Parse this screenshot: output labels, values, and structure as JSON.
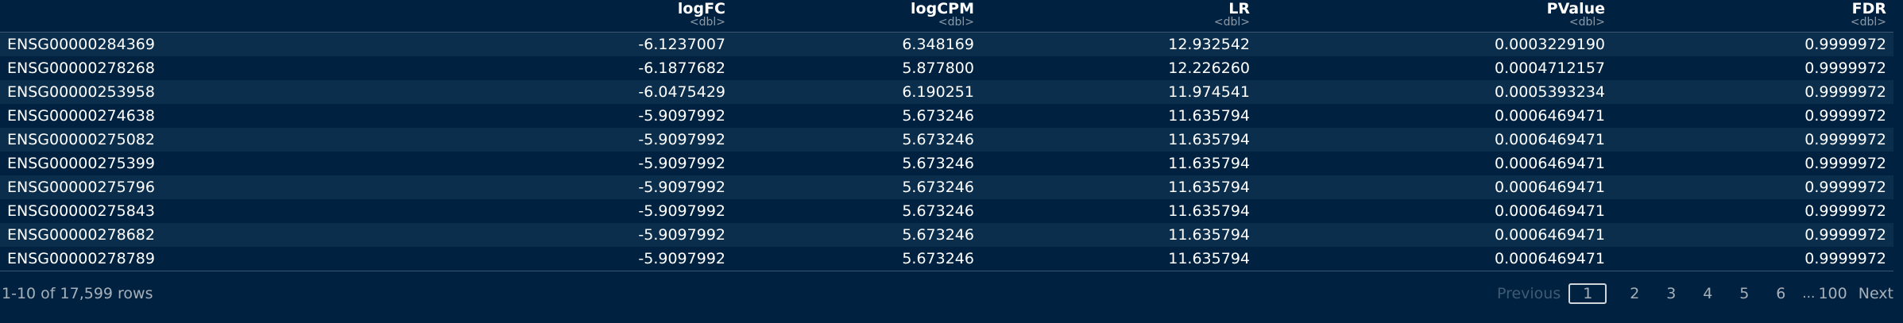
{
  "table": {
    "columns": [
      {
        "name": "",
        "type": ""
      },
      {
        "name": "logFC",
        "type": "<dbl>"
      },
      {
        "name": "logCPM",
        "type": "<dbl>"
      },
      {
        "name": "LR",
        "type": "<dbl>"
      },
      {
        "name": "PValue",
        "type": "<dbl>"
      },
      {
        "name": "FDR",
        "type": "<dbl>"
      }
    ],
    "rows": [
      [
        "ENSG00000284369",
        "-6.1237007",
        "6.348169",
        "12.932542",
        "0.0003229190",
        "0.9999972"
      ],
      [
        "ENSG00000278268",
        "-6.1877682",
        "5.877800",
        "12.226260",
        "0.0004712157",
        "0.9999972"
      ],
      [
        "ENSG00000253958",
        "-6.0475429",
        "6.190251",
        "11.974541",
        "0.0005393234",
        "0.9999972"
      ],
      [
        "ENSG00000274638",
        "-5.9097992",
        "5.673246",
        "11.635794",
        "0.0006469471",
        "0.9999972"
      ],
      [
        "ENSG00000275082",
        "-5.9097992",
        "5.673246",
        "11.635794",
        "0.0006469471",
        "0.9999972"
      ],
      [
        "ENSG00000275399",
        "-5.9097992",
        "5.673246",
        "11.635794",
        "0.0006469471",
        "0.9999972"
      ],
      [
        "ENSG00000275796",
        "-5.9097992",
        "5.673246",
        "11.635794",
        "0.0006469471",
        "0.9999972"
      ],
      [
        "ENSG00000275843",
        "-5.9097992",
        "5.673246",
        "11.635794",
        "0.0006469471",
        "0.9999972"
      ],
      [
        "ENSG00000278682",
        "-5.9097992",
        "5.673246",
        "11.635794",
        "0.0006469471",
        "0.9999972"
      ],
      [
        "ENSG00000278789",
        "-5.9097992",
        "5.673246",
        "11.635794",
        "0.0006469471",
        "0.9999972"
      ]
    ]
  },
  "footer": {
    "row_info": "1-10 of 17,599 rows",
    "previous_label": "Previous",
    "pages": [
      "1",
      "2",
      "3",
      "4",
      "5",
      "6"
    ],
    "current_page": "1",
    "ellipsis": "...",
    "last_page": "100",
    "next_label": "Next"
  },
  "colors": {
    "background": "#002240",
    "row_stripe": "#0a2e4c",
    "text": "#ffffff",
    "muted_text": "#a6b0ba",
    "disabled_text": "#3f5a74"
  }
}
